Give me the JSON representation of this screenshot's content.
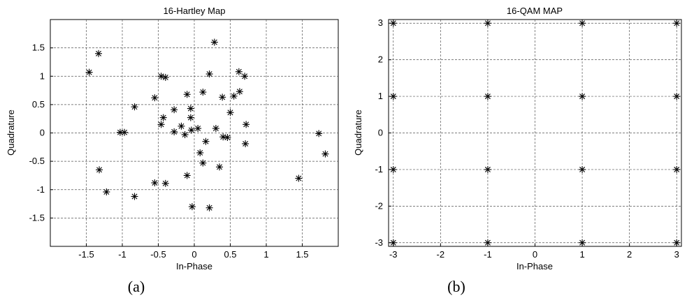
{
  "chart_data": [
    {
      "type": "scatter",
      "title": "16-Hartley Map",
      "xlabel": "In-Phase",
      "ylabel": "Quadrature",
      "caption": "(a)",
      "xlim": [
        -2.0,
        2.0
      ],
      "ylim": [
        -2.0,
        2.0
      ],
      "xticks": [
        -1.5,
        -1,
        -0.5,
        0,
        0.5,
        1,
        1.5
      ],
      "xtick_labels": [
        "-1.5",
        "-1",
        "-0.5",
        "0",
        "0.5",
        "1",
        "1.5"
      ],
      "yticks": [
        -1.5,
        -1,
        -0.5,
        0,
        0.5,
        1,
        1.5
      ],
      "ytick_labels": [
        "-1.5",
        "-1",
        "-0.5",
        "0",
        "0.5",
        "1",
        "1.5"
      ],
      "grid": true,
      "marker": "*",
      "points": [
        [
          -1.46,
          1.07
        ],
        [
          -1.33,
          1.4
        ],
        [
          -1.32,
          -0.65
        ],
        [
          -1.22,
          -1.04
        ],
        [
          -1.03,
          0.01
        ],
        [
          -0.97,
          0.01
        ],
        [
          -0.83,
          0.46
        ],
        [
          -0.83,
          -1.12
        ],
        [
          -0.55,
          0.62
        ],
        [
          -0.55,
          -0.88
        ],
        [
          -0.46,
          1.0
        ],
        [
          -0.46,
          0.15
        ],
        [
          -0.43,
          0.27
        ],
        [
          -0.4,
          0.98
        ],
        [
          -0.4,
          -0.89
        ],
        [
          -0.28,
          0.41
        ],
        [
          -0.28,
          0.02
        ],
        [
          -0.18,
          0.12
        ],
        [
          -0.13,
          -0.03
        ],
        [
          -0.1,
          0.68
        ],
        [
          -0.1,
          -0.75
        ],
        [
          -0.05,
          0.43
        ],
        [
          -0.05,
          0.27
        ],
        [
          -0.04,
          0.05
        ],
        [
          -0.03,
          -1.3
        ],
        [
          0.05,
          0.08
        ],
        [
          0.08,
          -0.35
        ],
        [
          0.12,
          0.72
        ],
        [
          0.12,
          -0.53
        ],
        [
          0.16,
          -0.15
        ],
        [
          0.21,
          1.04
        ],
        [
          0.21,
          -1.32
        ],
        [
          0.28,
          1.6
        ],
        [
          0.3,
          0.08
        ],
        [
          0.35,
          -0.6
        ],
        [
          0.39,
          0.63
        ],
        [
          0.4,
          -0.07
        ],
        [
          0.46,
          -0.08
        ],
        [
          0.5,
          0.36
        ],
        [
          0.55,
          0.65
        ],
        [
          0.62,
          1.08
        ],
        [
          0.63,
          0.73
        ],
        [
          0.7,
          1.0
        ],
        [
          0.71,
          -0.19
        ],
        [
          0.72,
          0.15
        ],
        [
          1.45,
          -0.8
        ],
        [
          1.73,
          -0.01
        ],
        [
          1.82,
          -0.37
        ]
      ]
    },
    {
      "type": "scatter",
      "title": "16-QAM MAP",
      "xlabel": "In-Phase",
      "ylabel": "Quadrature",
      "caption": "(b)",
      "xlim": [
        -3.1,
        3.1
      ],
      "ylim": [
        -3.1,
        3.1
      ],
      "xticks": [
        -3,
        -2,
        -1,
        0,
        1,
        2,
        3
      ],
      "xtick_labels": [
        "-3",
        "-2",
        "-1",
        "0",
        "1",
        "2",
        "3"
      ],
      "yticks": [
        -3,
        -2,
        -1,
        0,
        1,
        2,
        3
      ],
      "ytick_labels": [
        "-3",
        "-2",
        "-1",
        "0",
        "1",
        "2",
        "3"
      ],
      "grid": true,
      "marker": "*",
      "points": [
        [
          -3,
          3
        ],
        [
          -1,
          3
        ],
        [
          1,
          3
        ],
        [
          3,
          3
        ],
        [
          -3,
          1
        ],
        [
          -1,
          1
        ],
        [
          1,
          1
        ],
        [
          3,
          1
        ],
        [
          -3,
          -1
        ],
        [
          -1,
          -1
        ],
        [
          1,
          -1
        ],
        [
          3,
          -1
        ],
        [
          -3,
          -3
        ],
        [
          -1,
          -3
        ],
        [
          1,
          -3
        ],
        [
          3,
          -3
        ]
      ]
    }
  ]
}
